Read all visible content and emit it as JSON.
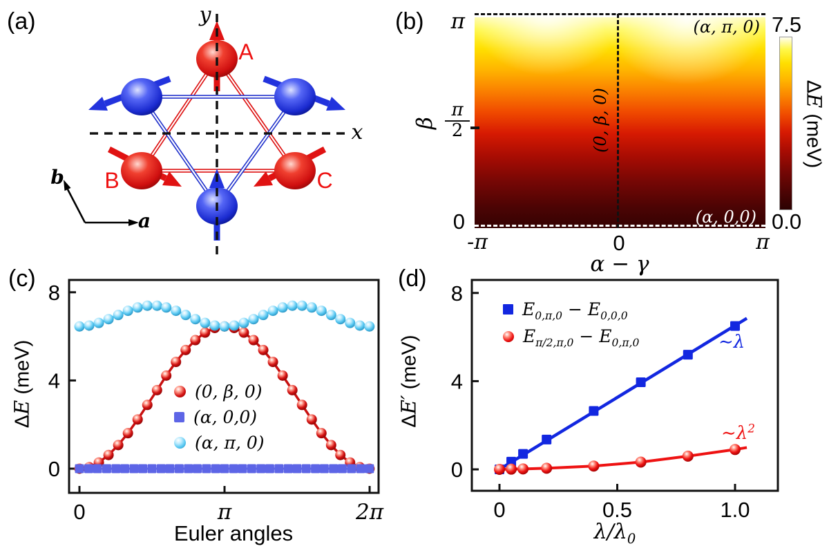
{
  "panels": {
    "a": "(a)",
    "b": "(b)",
    "c": "(c)",
    "d": "(d)"
  },
  "panel_a": {
    "label_y": "y",
    "label_x": "x",
    "vec_a": "a",
    "vec_b": "b",
    "site_A": "A",
    "site_B": "B",
    "site_C": "C",
    "red": "#e01212",
    "blue": "#2233dd",
    "description": "Two interpenetrating spin triangles (red A,B,C and blue) forming a hexagon; arrows show spin directions; dashed x/y axes; lattice vectors a,b"
  },
  "chart_data": [
    {
      "id": "panel-b",
      "type": "heatmap",
      "xlabel": "α − γ",
      "ylabel": "β",
      "xticks": [
        {
          "label": "-π"
        },
        {
          "label": "0"
        },
        {
          "label": "π"
        }
      ],
      "yticks": [
        {
          "label": "π"
        },
        {
          "num": "π",
          "den": "2"
        },
        {
          "label": "0"
        }
      ],
      "xlim": [
        "-π",
        "π"
      ],
      "ylim": [
        "0",
        "π"
      ],
      "colorbar": {
        "max": "7.5",
        "min": "0.0",
        "title_delta": "Δ",
        "title_E": "E",
        "title_unit": " (meV)",
        "range_meV": [
          0,
          7.5
        ]
      },
      "annotations": {
        "top_right": "(α, π, 0)",
        "bottom_right": "(α, 0,0)",
        "center_line": "(0, β, 0)"
      },
      "field_description": "ΔE ≈ 0 meV (black) at β=0 rising smoothly to ≈7.5 meV (white/yellow) at β=π, nearly independent of α−γ; brightest near α−γ ≈ ±π/2 at β ≈ π"
    },
    {
      "id": "panel-c",
      "type": "scatter-line",
      "xlabel": "Euler angles",
      "ylabel": {
        "delta": "Δ",
        "e": "E",
        "unit": " (meV)"
      },
      "xticks": [
        {
          "v": 0,
          "label": "0"
        },
        {
          "v": 3.1416,
          "label": "π"
        },
        {
          "v": 6.2832,
          "label": "2π"
        }
      ],
      "yticks": [
        {
          "v": 0,
          "label": "0"
        },
        {
          "v": 4,
          "label": "4"
        },
        {
          "v": 8,
          "label": "8"
        }
      ],
      "xlim": [
        -0.25,
        6.55
      ],
      "ylim": [
        -1.1,
        8.3
      ],
      "series": [
        {
          "name": "(0, β, 0)",
          "marker": "ball",
          "size": 7.5,
          "color": "#c81010",
          "line_width": 3.5,
          "ball_stops": [
            [
              "0%",
              "#ffffff"
            ],
            [
              "25%",
              "#ff9d8d"
            ],
            [
              "60%",
              "#d41212"
            ],
            [
              "100%",
              "#7c0000"
            ]
          ],
          "x": [
            0,
            0.21,
            0.42,
            0.63,
            0.84,
            1.05,
            1.26,
            1.47,
            1.68,
            1.88,
            2.09,
            2.3,
            2.51,
            2.72,
            2.93,
            3.14,
            3.35,
            3.56,
            3.77,
            3.98,
            4.19,
            4.4,
            4.61,
            4.82,
            5.03,
            5.24,
            5.45,
            5.65,
            5.86,
            6.07,
            6.28
          ],
          "y": [
            0,
            0.07,
            0.28,
            0.62,
            1.07,
            1.61,
            2.23,
            2.89,
            3.56,
            4.22,
            4.84,
            5.38,
            5.83,
            6.17,
            6.38,
            6.45,
            6.38,
            6.17,
            5.83,
            5.38,
            4.84,
            4.22,
            3.56,
            2.89,
            2.23,
            1.61,
            1.07,
            0.62,
            0.28,
            0.07,
            0
          ]
        },
        {
          "name": "(α, 0,0)",
          "marker": "square",
          "size": 13,
          "color": "#5d65e6",
          "line_width": 3,
          "x": [
            0,
            0.2,
            0.39,
            0.59,
            0.79,
            0.98,
            1.18,
            1.37,
            1.57,
            1.77,
            1.96,
            2.16,
            2.36,
            2.55,
            2.75,
            2.95,
            3.14,
            3.34,
            3.53,
            3.73,
            3.93,
            4.12,
            4.32,
            4.52,
            4.71,
            4.91,
            5.11,
            5.3,
            5.5,
            5.69,
            5.89,
            6.09,
            6.28
          ],
          "y": [
            0,
            0,
            0,
            0,
            0,
            0,
            0,
            0,
            0,
            0,
            0,
            0,
            0,
            0,
            0,
            0,
            0,
            0,
            0,
            0,
            0,
            0,
            0,
            0,
            0,
            0,
            0,
            0,
            0,
            0,
            0,
            0,
            0
          ]
        },
        {
          "name": "(α, π, 0)",
          "marker": "ball",
          "size": 7.5,
          "color": "#62cdf4",
          "line_width": 3.5,
          "ball_stops": [
            [
              "0%",
              "#ffffff"
            ],
            [
              "30%",
              "#bcebfd"
            ],
            [
              "62%",
              "#58c8f2"
            ],
            [
              "100%",
              "#1f87b6"
            ]
          ],
          "x": [
            0,
            0.21,
            0.42,
            0.63,
            0.84,
            1.05,
            1.26,
            1.47,
            1.68,
            1.88,
            2.09,
            2.3,
            2.51,
            2.72,
            2.93,
            3.14,
            3.35,
            3.56,
            3.77,
            3.98,
            4.19,
            4.4,
            4.61,
            4.82,
            5.03,
            5.24,
            5.45,
            5.65,
            5.86,
            6.07,
            6.28
          ],
          "y": [
            6.45,
            6.49,
            6.61,
            6.78,
            6.97,
            7.16,
            7.31,
            7.39,
            7.39,
            7.31,
            7.16,
            6.97,
            6.78,
            6.61,
            6.49,
            6.45,
            6.49,
            6.61,
            6.78,
            6.97,
            7.16,
            7.31,
            7.39,
            7.39,
            7.31,
            7.16,
            6.97,
            6.78,
            6.61,
            6.49,
            6.45
          ]
        }
      ]
    },
    {
      "id": "panel-d",
      "type": "scatter-line",
      "xlabel_parts": {
        "main": "λ/λ",
        "sub": "0"
      },
      "ylabel": {
        "delta": "Δ",
        "e": "E′",
        "unit": " (meV)"
      },
      "xticks": [
        {
          "v": 0,
          "label": "0"
        },
        {
          "v": 0.5,
          "label": "0.5"
        },
        {
          "v": 1.0,
          "label": "1.0"
        }
      ],
      "yticks": [
        {
          "v": 0,
          "label": "0"
        },
        {
          "v": 4,
          "label": "4"
        },
        {
          "v": 8,
          "label": "8"
        }
      ],
      "xlim": [
        -0.12,
        1.18
      ],
      "ylim": [
        -1.2,
        8.5
      ],
      "series": [
        {
          "name": "E(0,π,0) − E(0,0,0)",
          "name_parts": {
            "e1": "E",
            "s1": "0,π,0",
            "minus": "−",
            "e2": "E",
            "s2": "0,0,0"
          },
          "marker": "square",
          "size": 14,
          "color": "#1227e0",
          "line_width": 4.5,
          "x": [
            0,
            0.05,
            0.1,
            0.2,
            0.4,
            0.6,
            0.8,
            1.0
          ],
          "y": [
            0,
            0.35,
            0.7,
            1.35,
            2.65,
            3.95,
            5.2,
            6.5
          ],
          "line_x": [
            0,
            1.05
          ],
          "line_y": [
            0,
            6.85
          ]
        },
        {
          "name": "E(π/2,π,0) − E(0,π,0)",
          "name_parts": {
            "e1": "E",
            "s1": "π/2,π,0",
            "minus": "−",
            "e2": "E",
            "s2": "0,π,0"
          },
          "marker": "ball",
          "size": 8,
          "color": "#ee1212",
          "line_width": 4,
          "ball_stops": [
            [
              "0%",
              "#ffffff"
            ],
            [
              "28%",
              "#ff8878"
            ],
            [
              "60%",
              "#ee1212"
            ],
            [
              "100%",
              "#8e0000"
            ]
          ],
          "x": [
            0,
            0.05,
            0.1,
            0.2,
            0.4,
            0.6,
            0.8,
            1.0
          ],
          "y": [
            0,
            0.01,
            0.02,
            0.05,
            0.15,
            0.33,
            0.6,
            0.9
          ],
          "line_x": [
            0,
            0.05,
            0.1,
            0.2,
            0.4,
            0.6,
            0.8,
            1.0,
            1.05
          ],
          "line_y": [
            0,
            0.01,
            0.02,
            0.05,
            0.15,
            0.33,
            0.6,
            0.9,
            0.99
          ]
        }
      ],
      "annotations": [
        {
          "text": "∼λ",
          "sup": "",
          "color": "#1227e0"
        },
        {
          "text": "∼λ",
          "sup": "2",
          "color": "#ee1212"
        }
      ]
    }
  ]
}
